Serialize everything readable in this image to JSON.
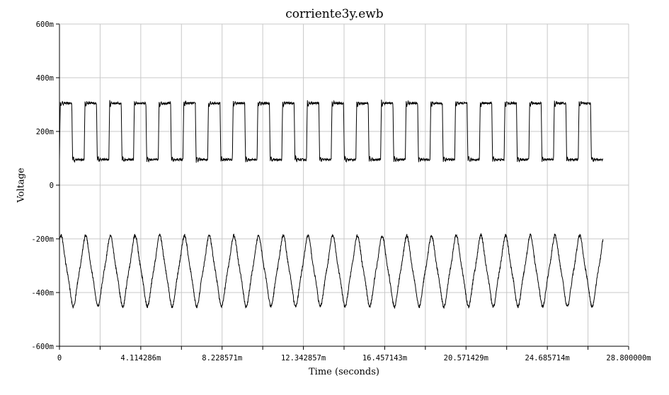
{
  "chart_data": {
    "type": "line",
    "title": "corriente3y.ewb",
    "xlabel": "Time (seconds)",
    "ylabel": "Voltage",
    "xlim": [
      0,
      0.0288
    ],
    "ylim": [
      -0.6,
      0.6
    ],
    "x_ticks": [
      "0",
      "4.114286m",
      "8.228571m",
      "12.342857m",
      "16.457143m",
      "20.571429m",
      "24.685714m",
      "28.800000m"
    ],
    "x_tick_values": [
      0,
      0.004114286,
      0.008228571,
      0.012342857,
      0.016457143,
      0.020571429,
      0.024685714,
      0.0288
    ],
    "y_ticks": [
      "600m",
      "400m",
      "200m",
      "0",
      "-200m",
      "-400m",
      "-600m"
    ],
    "y_tick_values": [
      0.6,
      0.4,
      0.2,
      0,
      -0.2,
      -0.4,
      -0.6
    ],
    "grid": true,
    "series": [
      {
        "color": "#000000",
        "x_end": 0.0275,
        "period": 0.00125,
        "high": 0.305,
        "low": 0.095,
        "description_values": {
          "peak_max": 0.33,
          "trough_min": 0.07
        }
      },
      {
        "color": "#000000",
        "x_end": 0.0275,
        "period": 0.00125,
        "high": -0.19,
        "low": -0.45,
        "description_values": {
          "peak_max": -0.155,
          "trough_min": -0.49
        }
      }
    ]
  }
}
